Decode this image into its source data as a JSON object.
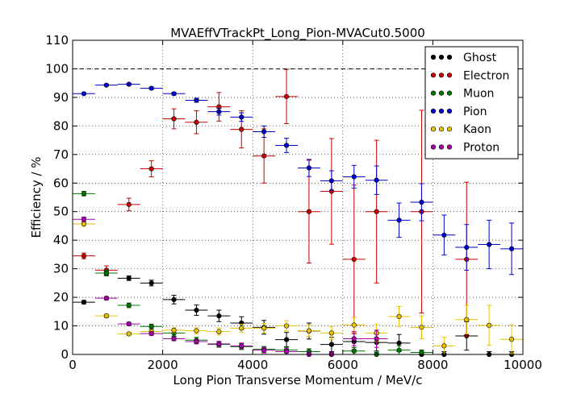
{
  "chart_data": {
    "type": "scatter",
    "title": "MVAEffVTrackPt_Long_Pion-MVACut0.5000",
    "xlabel": "Long Pion Transverse Momentum / MeV/c",
    "ylabel": "Efficiency / %",
    "xlim": [
      0,
      10000
    ],
    "ylim": [
      0,
      110
    ],
    "xticks": [
      "0",
      "2000",
      "4000",
      "6000",
      "8000",
      "10000"
    ],
    "yticks": [
      "0",
      "10",
      "20",
      "30",
      "40",
      "50",
      "60",
      "70",
      "80",
      "90",
      "100",
      "110"
    ],
    "xtick_values": [
      0,
      2000,
      4000,
      6000,
      8000,
      10000
    ],
    "ytick_values": [
      0,
      10,
      20,
      30,
      40,
      50,
      60,
      70,
      80,
      90,
      100,
      110
    ],
    "reference_line": 100,
    "grid": true,
    "legend_position": "top-right",
    "bin_half_width": 250,
    "series": [
      {
        "name": "Ghost",
        "color": "#000000",
        "points": [
          {
            "x": 250,
            "y": 18.3,
            "err": 0.6
          },
          {
            "x": 750,
            "y": 28.5,
            "err": 0.8
          },
          {
            "x": 1250,
            "y": 26.7,
            "err": 0.8
          },
          {
            "x": 1750,
            "y": 25.0,
            "err": 1.0
          },
          {
            "x": 2250,
            "y": 19.2,
            "err": 1.5
          },
          {
            "x": 2750,
            "y": 15.5,
            "err": 1.8
          },
          {
            "x": 3250,
            "y": 13.5,
            "err": 2.0
          },
          {
            "x": 3750,
            "y": 11.0,
            "err": 2.2
          },
          {
            "x": 4250,
            "y": 9.5,
            "err": 2.4
          },
          {
            "x": 4750,
            "y": 5.2,
            "err": 2.5
          },
          {
            "x": 5250,
            "y": 8.2,
            "err": 2.8
          },
          {
            "x": 5750,
            "y": 3.5,
            "err": 2.5
          },
          {
            "x": 6250,
            "y": 4.5,
            "err": 2.8
          },
          {
            "x": 6750,
            "y": 4.2,
            "err": 3.0
          },
          {
            "x": 7250,
            "y": 4.0,
            "err": 3.0
          },
          {
            "x": 7750,
            "y": 0.0,
            "err": 1.5
          },
          {
            "x": 8250,
            "y": 0.0,
            "err": 1.0
          },
          {
            "x": 8750,
            "y": 6.5,
            "err": 5.0
          },
          {
            "x": 9250,
            "y": 0.0,
            "err": 1.0
          },
          {
            "x": 9750,
            "y": 0.0,
            "err": 1.0
          }
        ]
      },
      {
        "name": "Electron",
        "color": "#cc0000",
        "points": [
          {
            "x": 250,
            "y": 34.5,
            "err": 1.0
          },
          {
            "x": 750,
            "y": 29.5,
            "err": 1.5
          },
          {
            "x": 1250,
            "y": 52.5,
            "err": 2.2
          },
          {
            "x": 1750,
            "y": 65.0,
            "err": 2.8
          },
          {
            "x": 2250,
            "y": 82.5,
            "err": 3.5
          },
          {
            "x": 2750,
            "y": 81.3,
            "err": 4.0
          },
          {
            "x": 3250,
            "y": 86.7,
            "err": 5.0
          },
          {
            "x": 3750,
            "y": 78.8,
            "err": 6.5
          },
          {
            "x": 4250,
            "y": 69.5,
            "err": 9.5
          },
          {
            "x": 4750,
            "y": 90.3,
            "err": 9.5
          },
          {
            "x": 5250,
            "y": 50.0,
            "err": 18.0
          },
          {
            "x": 5750,
            "y": 57.1,
            "err": 18.5
          },
          {
            "x": 6250,
            "y": 33.3,
            "err": 26.0
          },
          {
            "x": 6750,
            "y": 50.0,
            "err": 25.0
          },
          {
            "x": 7750,
            "y": 50.0,
            "err": 35.5
          },
          {
            "x": 8750,
            "y": 33.3,
            "err": 27.0
          }
        ]
      },
      {
        "name": "Muon",
        "color": "#007700",
        "points": [
          {
            "x": 250,
            "y": 56.3,
            "err": 0.8
          },
          {
            "x": 750,
            "y": 28.5,
            "err": 1.0
          },
          {
            "x": 1250,
            "y": 17.2,
            "err": 0.8
          },
          {
            "x": 1750,
            "y": 9.8,
            "err": 0.8
          },
          {
            "x": 2250,
            "y": 7.5,
            "err": 1.0
          },
          {
            "x": 2750,
            "y": 5.0,
            "err": 1.0
          },
          {
            "x": 3250,
            "y": 3.5,
            "err": 1.0
          },
          {
            "x": 3750,
            "y": 2.7,
            "err": 1.0
          },
          {
            "x": 4250,
            "y": 1.8,
            "err": 1.0
          },
          {
            "x": 4750,
            "y": 1.5,
            "err": 1.0
          },
          {
            "x": 5250,
            "y": 1.0,
            "err": 1.0
          },
          {
            "x": 5750,
            "y": 0.0,
            "err": 0.8
          },
          {
            "x": 6250,
            "y": 1.2,
            "err": 1.2
          },
          {
            "x": 6750,
            "y": 0.0,
            "err": 0.8
          },
          {
            "x": 7250,
            "y": 1.5,
            "err": 1.5
          },
          {
            "x": 7750,
            "y": 0.7,
            "err": 0.8
          }
        ]
      },
      {
        "name": "Pion",
        "color": "#0000cc",
        "points": [
          {
            "x": 250,
            "y": 91.3,
            "err": 0.3
          },
          {
            "x": 750,
            "y": 94.3,
            "err": 0.3
          },
          {
            "x": 1250,
            "y": 94.6,
            "err": 0.3
          },
          {
            "x": 1750,
            "y": 93.2,
            "err": 0.4
          },
          {
            "x": 2250,
            "y": 91.3,
            "err": 0.5
          },
          {
            "x": 2750,
            "y": 89.0,
            "err": 0.7
          },
          {
            "x": 3250,
            "y": 85.0,
            "err": 1.2
          },
          {
            "x": 3750,
            "y": 83.1,
            "err": 1.5
          },
          {
            "x": 4250,
            "y": 78.0,
            "err": 2.0
          },
          {
            "x": 4750,
            "y": 73.2,
            "err": 2.5
          },
          {
            "x": 5250,
            "y": 65.3,
            "err": 3.0
          },
          {
            "x": 5750,
            "y": 60.8,
            "err": 3.5
          },
          {
            "x": 6250,
            "y": 62.2,
            "err": 4.0
          },
          {
            "x": 6750,
            "y": 61.0,
            "err": 5.0
          },
          {
            "x": 7250,
            "y": 47.0,
            "err": 6.0
          },
          {
            "x": 7750,
            "y": 53.3,
            "err": 6.5
          },
          {
            "x": 8250,
            "y": 41.8,
            "err": 7.0
          },
          {
            "x": 8750,
            "y": 37.5,
            "err": 8.0
          },
          {
            "x": 9250,
            "y": 38.5,
            "err": 8.5
          },
          {
            "x": 9750,
            "y": 37.0,
            "err": 9.0
          }
        ]
      },
      {
        "name": "Kaon",
        "color": "#e6c200",
        "points": [
          {
            "x": 250,
            "y": 45.7,
            "err": 0.8
          },
          {
            "x": 750,
            "y": 13.5,
            "err": 0.6
          },
          {
            "x": 1250,
            "y": 7.2,
            "err": 0.5
          },
          {
            "x": 1750,
            "y": 8.0,
            "err": 0.6
          },
          {
            "x": 2250,
            "y": 8.5,
            "err": 0.8
          },
          {
            "x": 2750,
            "y": 8.3,
            "err": 1.0
          },
          {
            "x": 3250,
            "y": 8.0,
            "err": 1.2
          },
          {
            "x": 3750,
            "y": 9.2,
            "err": 1.4
          },
          {
            "x": 4250,
            "y": 9.2,
            "err": 1.6
          },
          {
            "x": 4750,
            "y": 10.0,
            "err": 1.8
          },
          {
            "x": 5250,
            "y": 8.3,
            "err": 2.0
          },
          {
            "x": 5750,
            "y": 7.5,
            "err": 2.3
          },
          {
            "x": 6250,
            "y": 10.3,
            "err": 2.6
          },
          {
            "x": 6750,
            "y": 7.5,
            "err": 3.0
          },
          {
            "x": 7250,
            "y": 13.3,
            "err": 3.5
          },
          {
            "x": 7750,
            "y": 9.5,
            "err": 4.0
          },
          {
            "x": 8250,
            "y": 3.0,
            "err": 3.0
          },
          {
            "x": 8750,
            "y": 12.2,
            "err": 5.0
          },
          {
            "x": 9250,
            "y": 10.2,
            "err": 7.0
          },
          {
            "x": 9750,
            "y": 5.3,
            "err": 5.0
          }
        ]
      },
      {
        "name": "Proton",
        "color": "#aa00aa",
        "points": [
          {
            "x": 250,
            "y": 47.3,
            "err": 0.8
          },
          {
            "x": 750,
            "y": 19.7,
            "err": 0.6
          },
          {
            "x": 1250,
            "y": 10.7,
            "err": 0.6
          },
          {
            "x": 1750,
            "y": 7.3,
            "err": 0.6
          },
          {
            "x": 2250,
            "y": 5.5,
            "err": 0.7
          },
          {
            "x": 2750,
            "y": 4.5,
            "err": 0.8
          },
          {
            "x": 3250,
            "y": 3.7,
            "err": 0.9
          },
          {
            "x": 3750,
            "y": 3.0,
            "err": 1.0
          },
          {
            "x": 4250,
            "y": 1.5,
            "err": 1.0
          },
          {
            "x": 4750,
            "y": 1.0,
            "err": 1.0
          },
          {
            "x": 5250,
            "y": 0.0,
            "err": 0.8
          },
          {
            "x": 5750,
            "y": 0.0,
            "err": 0.8
          },
          {
            "x": 6250,
            "y": 5.5,
            "err": 2.5
          },
          {
            "x": 6750,
            "y": 5.5,
            "err": 3.0
          }
        ]
      }
    ]
  }
}
